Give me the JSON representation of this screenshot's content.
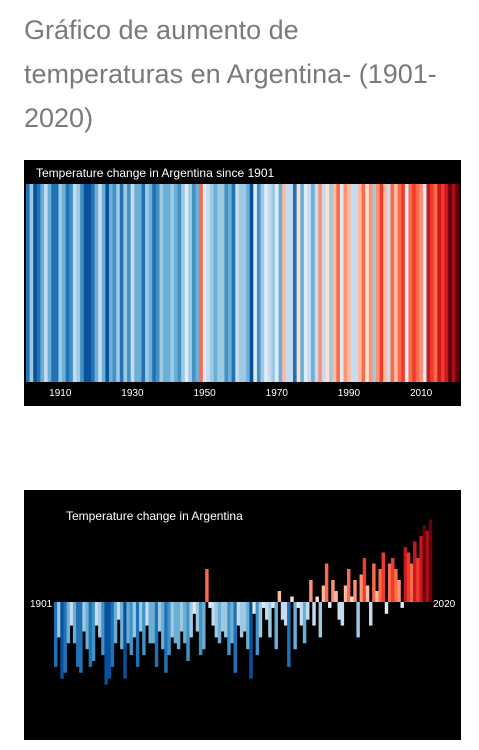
{
  "page": {
    "title": "Gráfico de aumento de temperaturas en Argentina- (1901-2020)"
  },
  "chart_data": [
    {
      "type": "heatmap",
      "title": "Temperature change in Argentina since 1901",
      "x_start": 1901,
      "x_end": 2020,
      "x_ticks": [
        1910,
        1930,
        1950,
        1970,
        1990,
        2010
      ],
      "anomaly_c": [
        -0.55,
        -0.3,
        -0.65,
        -0.6,
        -0.35,
        -0.2,
        -0.35,
        -0.55,
        -0.6,
        -0.25,
        -0.4,
        -0.55,
        -0.5,
        -0.2,
        -0.3,
        -0.45,
        -0.7,
        -0.65,
        -0.55,
        -0.35,
        -0.15,
        -0.4,
        -0.65,
        -0.35,
        -0.45,
        -0.3,
        -0.55,
        -0.25,
        -0.45,
        -0.2,
        -0.35,
        -0.35,
        -0.55,
        -0.25,
        -0.4,
        -0.6,
        -0.45,
        -0.3,
        -0.35,
        -0.4,
        -0.25,
        -0.35,
        -0.5,
        -0.3,
        -0.1,
        -0.25,
        -0.45,
        -0.4,
        0.3,
        -0.05,
        -0.2,
        -0.3,
        -0.35,
        -0.25,
        -0.3,
        -0.45,
        -0.35,
        -0.6,
        -0.2,
        -0.3,
        -0.25,
        -0.4,
        -0.65,
        -0.1,
        -0.45,
        -0.3,
        -0.05,
        -0.15,
        -0.3,
        -0.05,
        -0.4,
        0.1,
        -0.15,
        -0.2,
        -0.55,
        0.05,
        -0.4,
        -0.05,
        -0.2,
        -0.35,
        -0.15,
        0.2,
        -0.2,
        0.05,
        -0.3,
        0.15,
        0.35,
        -0.05,
        0.2,
        0.1,
        -0.15,
        -0.2,
        0.15,
        0.3,
        0.05,
        0.2,
        -0.3,
        0.25,
        0.4,
        0.15,
        -0.2,
        0.35,
        0.1,
        0.3,
        0.45,
        -0.1,
        0.35,
        0.4,
        0.3,
        0.2,
        -0.05,
        0.5,
        0.45,
        0.35,
        0.55,
        0.4,
        0.6,
        0.7,
        0.65,
        0.75
      ],
      "ylim": [
        -0.8,
        0.8
      ]
    },
    {
      "type": "bar",
      "title": "Temperature change in Argentina",
      "x_start_label": "1901",
      "x_end_label": "2020"
    }
  ]
}
